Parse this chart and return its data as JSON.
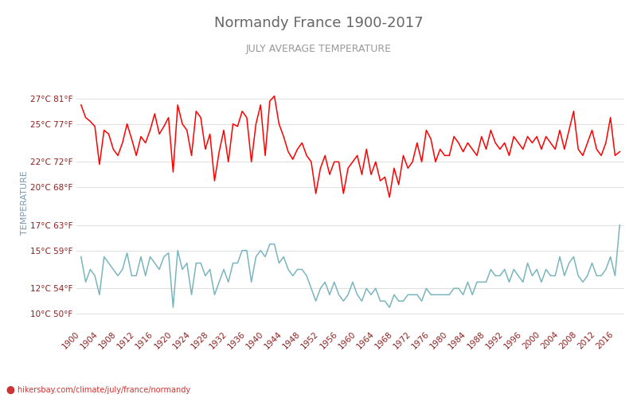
{
  "title": "Normandy France 1900-2017",
  "subtitle": "JULY AVERAGE TEMPERATURE",
  "ylabel": "TEMPERATURE",
  "xlabel_url": "hikersbay.com/climate/july/france/normandy",
  "years": [
    1900,
    1901,
    1902,
    1903,
    1904,
    1905,
    1906,
    1907,
    1908,
    1909,
    1910,
    1911,
    1912,
    1913,
    1914,
    1915,
    1916,
    1917,
    1918,
    1919,
    1920,
    1921,
    1922,
    1923,
    1924,
    1925,
    1926,
    1927,
    1928,
    1929,
    1930,
    1931,
    1932,
    1933,
    1934,
    1935,
    1936,
    1937,
    1938,
    1939,
    1940,
    1941,
    1942,
    1943,
    1944,
    1945,
    1946,
    1947,
    1948,
    1949,
    1950,
    1951,
    1952,
    1953,
    1954,
    1955,
    1956,
    1957,
    1958,
    1959,
    1960,
    1961,
    1962,
    1963,
    1964,
    1965,
    1966,
    1967,
    1968,
    1969,
    1970,
    1971,
    1972,
    1973,
    1974,
    1975,
    1976,
    1977,
    1978,
    1979,
    1980,
    1981,
    1982,
    1983,
    1984,
    1985,
    1986,
    1987,
    1988,
    1989,
    1990,
    1991,
    1992,
    1993,
    1994,
    1995,
    1996,
    1997,
    1998,
    1999,
    2000,
    2001,
    2002,
    2003,
    2004,
    2005,
    2006,
    2007,
    2008,
    2009,
    2010,
    2011,
    2012,
    2013,
    2014,
    2015,
    2016,
    2017
  ],
  "day_temps": [
    26.5,
    25.5,
    25.2,
    24.8,
    21.8,
    24.5,
    24.2,
    23.0,
    22.5,
    23.5,
    25.0,
    23.8,
    22.5,
    24.0,
    23.5,
    24.5,
    25.8,
    24.2,
    24.8,
    25.5,
    21.2,
    26.5,
    25.0,
    24.5,
    22.5,
    26.0,
    25.5,
    23.0,
    24.2,
    20.5,
    22.8,
    24.5,
    22.0,
    25.0,
    24.8,
    26.0,
    25.5,
    22.0,
    25.0,
    26.5,
    22.5,
    26.8,
    27.2,
    25.0,
    24.0,
    22.8,
    22.2,
    23.0,
    23.5,
    22.5,
    22.0,
    19.5,
    21.5,
    22.5,
    21.0,
    22.0,
    22.0,
    19.5,
    21.5,
    22.0,
    22.5,
    21.0,
    23.0,
    21.0,
    22.0,
    20.5,
    20.8,
    19.2,
    21.5,
    20.2,
    22.5,
    21.5,
    22.0,
    23.5,
    22.0,
    24.5,
    23.8,
    22.0,
    23.0,
    22.5,
    22.5,
    24.0,
    23.5,
    22.8,
    23.5,
    23.0,
    22.5,
    24.0,
    23.0,
    24.5,
    23.5,
    23.0,
    23.5,
    22.5,
    24.0,
    23.5,
    23.0,
    24.0,
    23.5,
    24.0,
    23.0,
    24.0,
    23.5,
    23.0,
    24.5,
    23.0,
    24.5,
    26.0,
    23.0,
    22.5,
    23.5,
    24.5,
    23.0,
    22.5,
    23.5,
    25.5,
    22.5,
    22.8
  ],
  "night_temps": [
    14.5,
    12.5,
    13.5,
    13.0,
    11.5,
    14.5,
    14.0,
    13.5,
    13.0,
    13.5,
    14.8,
    13.0,
    13.0,
    14.5,
    13.0,
    14.5,
    14.0,
    13.5,
    14.5,
    14.8,
    10.5,
    15.0,
    13.5,
    14.0,
    11.5,
    14.0,
    14.0,
    13.0,
    13.5,
    11.5,
    12.5,
    13.5,
    12.5,
    14.0,
    14.0,
    15.0,
    15.0,
    12.5,
    14.5,
    15.0,
    14.5,
    15.5,
    15.5,
    14.0,
    14.5,
    13.5,
    13.0,
    13.5,
    13.5,
    13.0,
    12.0,
    11.0,
    12.0,
    12.5,
    11.5,
    12.5,
    11.5,
    11.0,
    11.5,
    12.5,
    11.5,
    11.0,
    12.0,
    11.5,
    12.0,
    11.0,
    11.0,
    10.5,
    11.5,
    11.0,
    11.0,
    11.5,
    11.5,
    11.5,
    11.0,
    12.0,
    11.5,
    11.5,
    11.5,
    11.5,
    11.5,
    12.0,
    12.0,
    11.5,
    12.5,
    11.5,
    12.5,
    12.5,
    12.5,
    13.5,
    13.0,
    13.0,
    13.5,
    12.5,
    13.5,
    13.0,
    12.5,
    14.0,
    13.0,
    13.5,
    12.5,
    13.5,
    13.0,
    13.0,
    14.5,
    13.0,
    14.0,
    14.5,
    13.0,
    12.5,
    13.0,
    14.0,
    13.0,
    13.0,
    13.5,
    14.5,
    13.0,
    17.0
  ],
  "yticks_c": [
    10,
    12,
    15,
    17,
    20,
    22,
    25,
    27
  ],
  "yticks_f": [
    50,
    54,
    59,
    63,
    68,
    72,
    77,
    81
  ],
  "ymin": 9.0,
  "ymax": 28.5,
  "day_color": "#ff0000",
  "night_color": "#7ab5be",
  "grid_color": "#e0e0e0",
  "title_color": "#666666",
  "subtitle_color": "#999999",
  "label_color": "#8b2020",
  "ylabel_color": "#7a9ab5",
  "url_color": "#cc3333",
  "background_color": "#ffffff"
}
